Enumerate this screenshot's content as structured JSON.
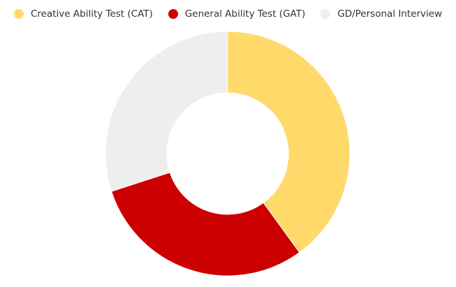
{
  "chart_data": {
    "type": "pie",
    "variant": "donut",
    "title": "",
    "legend_position": "top-left",
    "categories": [
      "Creative Ability Test (CAT)",
      "General Ability Test (GAT)",
      "GD/Personal Interview"
    ],
    "values": [
      40,
      30,
      30
    ],
    "colors": [
      "#FFDA6B",
      "#CC0000",
      "#EEEEEE"
    ]
  }
}
